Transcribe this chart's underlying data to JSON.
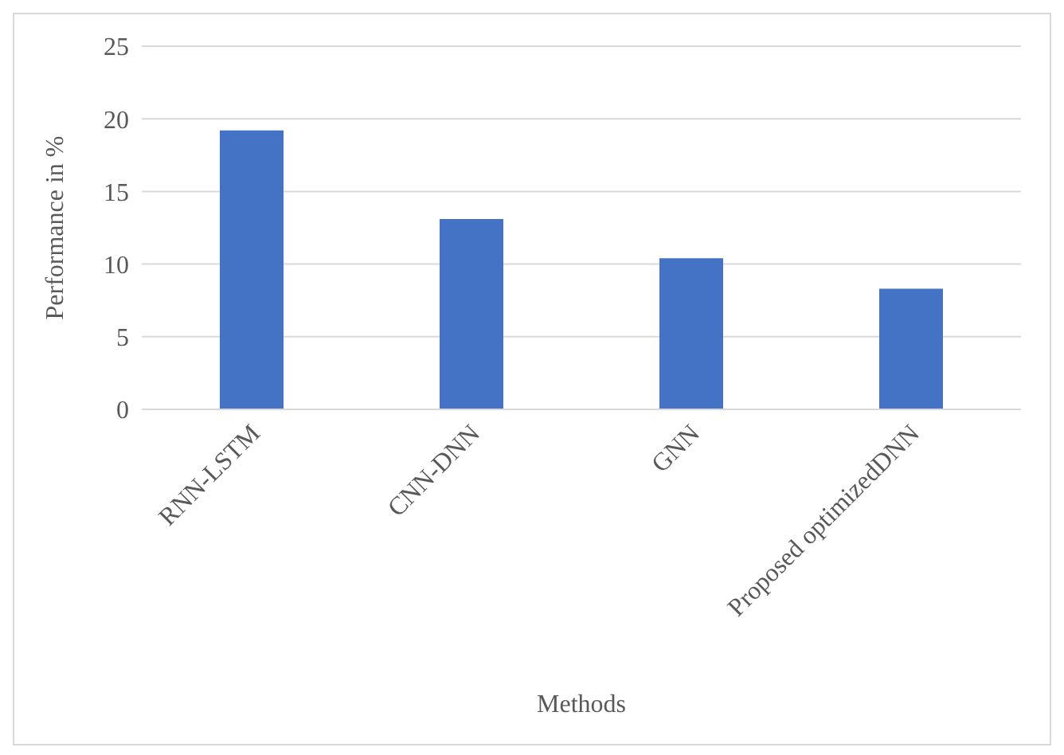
{
  "chart_data": {
    "type": "bar",
    "xlabel": "Methods",
    "ylabel": "Performance in %",
    "categories": [
      "RNN-LSTM",
      "CNN-DNN",
      "GNN",
      "Proposed optimizedDNN"
    ],
    "values": [
      19.2,
      13.1,
      10.4,
      8.3
    ],
    "color": "#4472c4",
    "ylim": [
      0,
      25
    ],
    "yticks": [
      0,
      5,
      10,
      15,
      20,
      25
    ],
    "grid": "y"
  }
}
